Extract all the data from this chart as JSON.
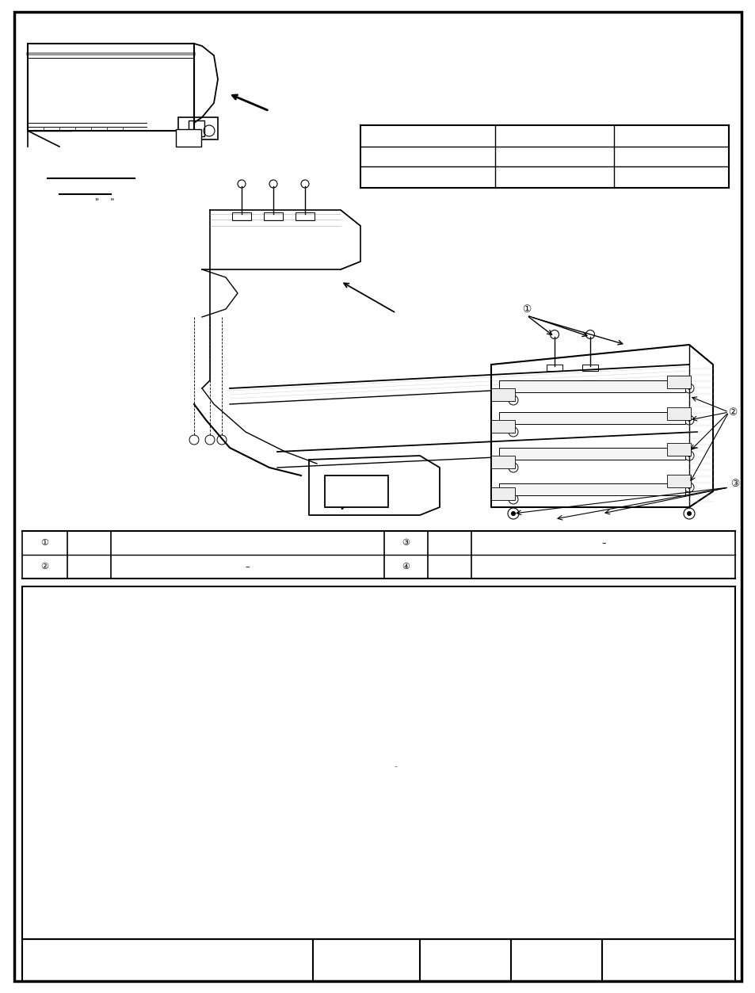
{
  "bg_color": "#ffffff",
  "page_width": 9.54,
  "page_height": 12.53,
  "dpi": 100
}
